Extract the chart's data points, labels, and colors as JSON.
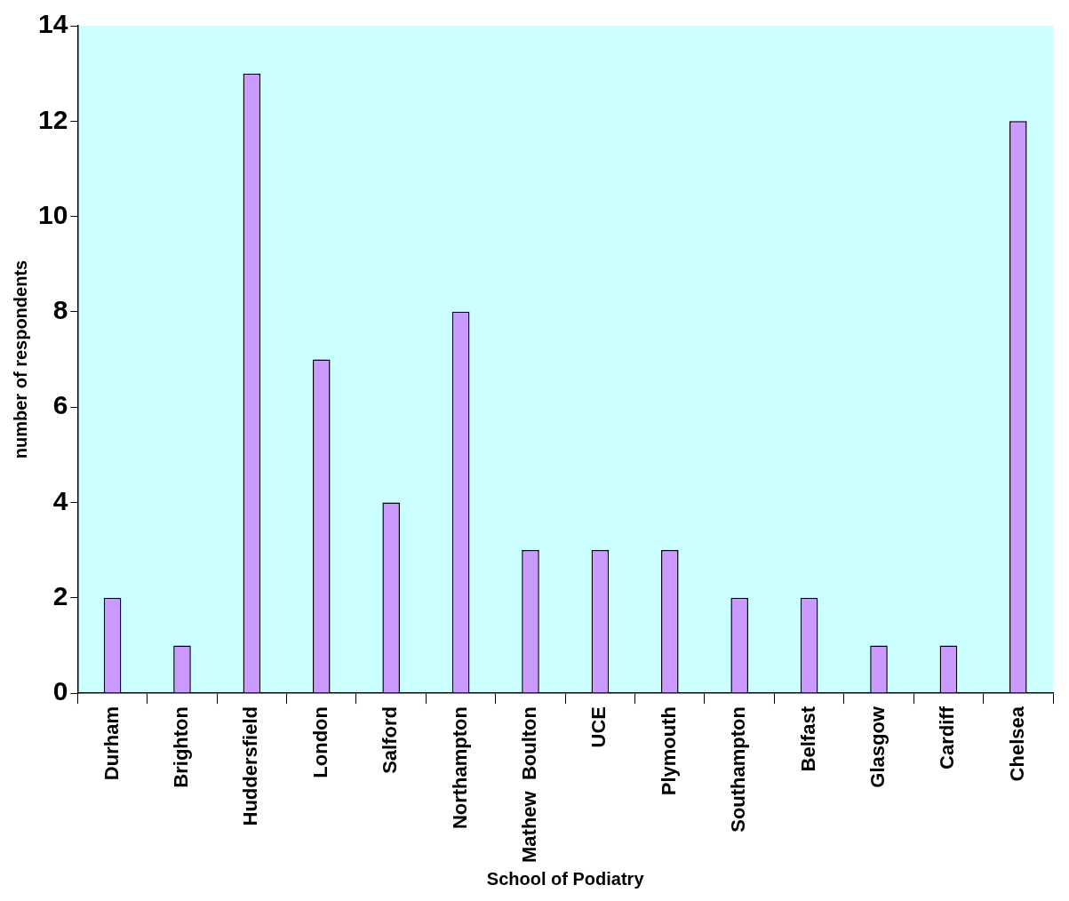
{
  "chart_data": {
    "type": "bar",
    "xlabel": "School of Podiatry",
    "ylabel": "number of respondents",
    "categories": [
      "Durham",
      "Brighton",
      "Huddersfield",
      "London",
      "Salford",
      "Northampton",
      "Mathew  Boulton",
      "UCE",
      "Plymouth",
      "Southampton",
      "Belfast",
      "Glasgow",
      "Cardiff",
      "Chelsea"
    ],
    "values": [
      2,
      1,
      13,
      7,
      4,
      8,
      3,
      3,
      3,
      2,
      2,
      1,
      1,
      12
    ],
    "color": "#cc99ff",
    "ylim": [
      0,
      14
    ],
    "yticks": [
      0,
      2,
      4,
      6,
      8,
      10,
      12,
      14
    ],
    "grid": false,
    "legend": false
  }
}
